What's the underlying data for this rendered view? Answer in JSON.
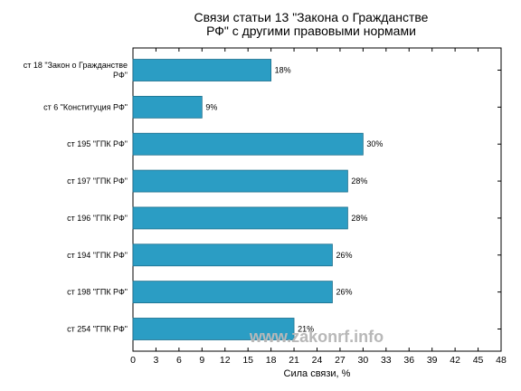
{
  "chart_data": {
    "type": "bar",
    "orientation": "horizontal",
    "title_lines": [
      "Связи статьи 13 \"Закона о Гражданстве",
      "РФ\" с другими правовыми нормами"
    ],
    "categories": [
      [
        "ст 18 \"Закон о Гражданстве",
        "РФ\""
      ],
      [
        "ст 6 \"Конституция РФ\""
      ],
      [
        "ст 195 \"ГПК РФ\""
      ],
      [
        "ст 197 \"ГПК РФ\""
      ],
      [
        "ст 196 \"ГПК РФ\""
      ],
      [
        "ст 194 \"ГПК РФ\""
      ],
      [
        "ст 198 \"ГПК РФ\""
      ],
      [
        "ст 254 \"ГПК РФ\""
      ]
    ],
    "values": [
      18,
      9,
      30,
      28,
      28,
      26,
      26,
      21
    ],
    "value_labels": [
      "18%",
      "9%",
      "30%",
      "28%",
      "28%",
      "26%",
      "26%",
      "21%"
    ],
    "xlabel": "Сила связи, %",
    "xlim": [
      0,
      48
    ],
    "xticks": [
      0,
      3,
      6,
      9,
      12,
      15,
      18,
      21,
      24,
      27,
      30,
      33,
      36,
      39,
      42,
      45,
      48
    ],
    "grid": false,
    "bar_color": "#2b9dc4",
    "bar_edge_color": "#1d6f8c",
    "watermark": "www.zakonrf.info"
  }
}
